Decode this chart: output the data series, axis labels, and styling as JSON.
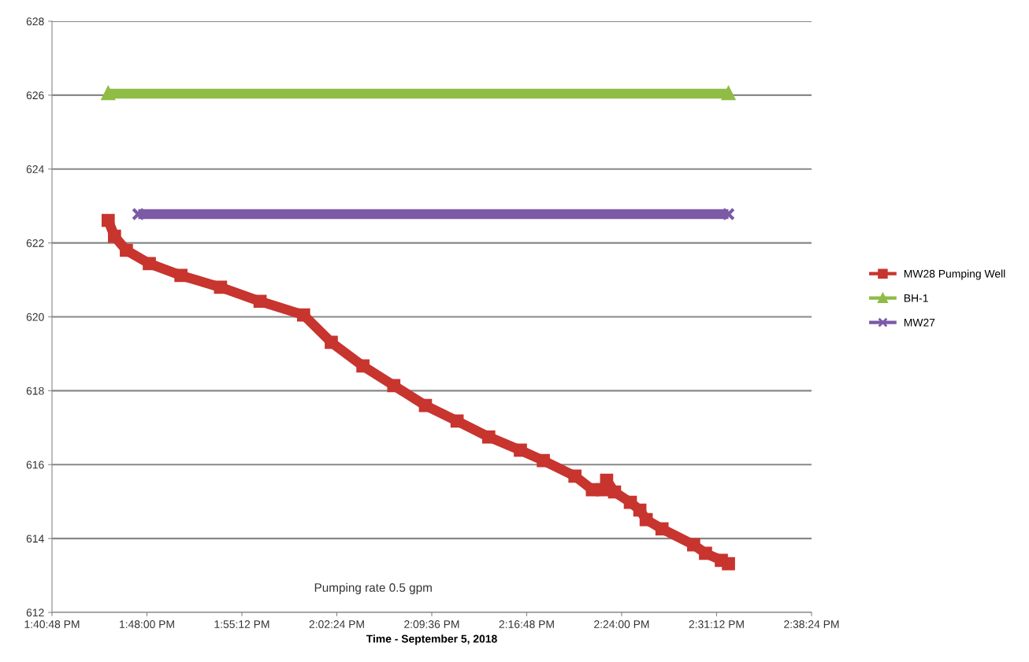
{
  "chart_data": {
    "type": "line",
    "xlabel": "Time - September 5, 2018",
    "xlim": [
      13.68,
      14.64
    ],
    "ylim": [
      612,
      628
    ],
    "xticks": [
      {
        "value": 13.68,
        "label": "1:40:48 PM"
      },
      {
        "value": 13.8,
        "label": "1:48:00 PM"
      },
      {
        "value": 13.92,
        "label": "1:55:12 PM"
      },
      {
        "value": 14.04,
        "label": "2:02:24 PM"
      },
      {
        "value": 14.16,
        "label": "2:09:36 PM"
      },
      {
        "value": 14.28,
        "label": "2:16:48 PM"
      },
      {
        "value": 14.4,
        "label": "2:24:00 PM"
      },
      {
        "value": 14.52,
        "label": "2:31:12 PM"
      },
      {
        "value": 14.64,
        "label": "2:38:24 PM"
      }
    ],
    "yticks": [
      612,
      614,
      616,
      618,
      620,
      622,
      624,
      626,
      628
    ],
    "grid": "y",
    "legend": "right",
    "line_style": "solid",
    "annotations": [
      "Pumping rate 0.5 gpm"
    ],
    "series": [
      {
        "name": "MW28 Pumping Well",
        "color": "#c8342e",
        "marker": "square",
        "x": [
          13.751,
          13.759,
          13.774,
          13.803,
          13.843,
          13.893,
          13.943,
          13.998,
          14.033,
          14.073,
          14.112,
          14.152,
          14.192,
          14.232,
          14.272,
          14.301,
          14.341,
          14.363,
          14.376,
          14.381,
          14.391,
          14.411,
          14.423,
          14.431,
          14.451,
          14.491,
          14.506,
          14.526,
          14.535
        ],
        "values": [
          622.61,
          622.18,
          621.8,
          621.44,
          621.12,
          620.8,
          620.42,
          620.05,
          619.31,
          618.67,
          618.14,
          617.6,
          617.18,
          616.75,
          616.39,
          616.11,
          615.69,
          615.32,
          615.32,
          615.58,
          615.26,
          614.98,
          614.77,
          614.51,
          614.26,
          613.83,
          613.6,
          613.41,
          613.32
        ]
      },
      {
        "name": "BH-1",
        "color": "#8fbc45",
        "marker": "triangle",
        "x": [
          13.751,
          14.535
        ],
        "values": [
          626.04,
          626.04
        ]
      },
      {
        "name": "MW27",
        "color": "#7b5aa6",
        "marker": "cross",
        "x": [
          13.789,
          14.535
        ],
        "values": [
          622.78,
          622.78
        ]
      }
    ]
  }
}
